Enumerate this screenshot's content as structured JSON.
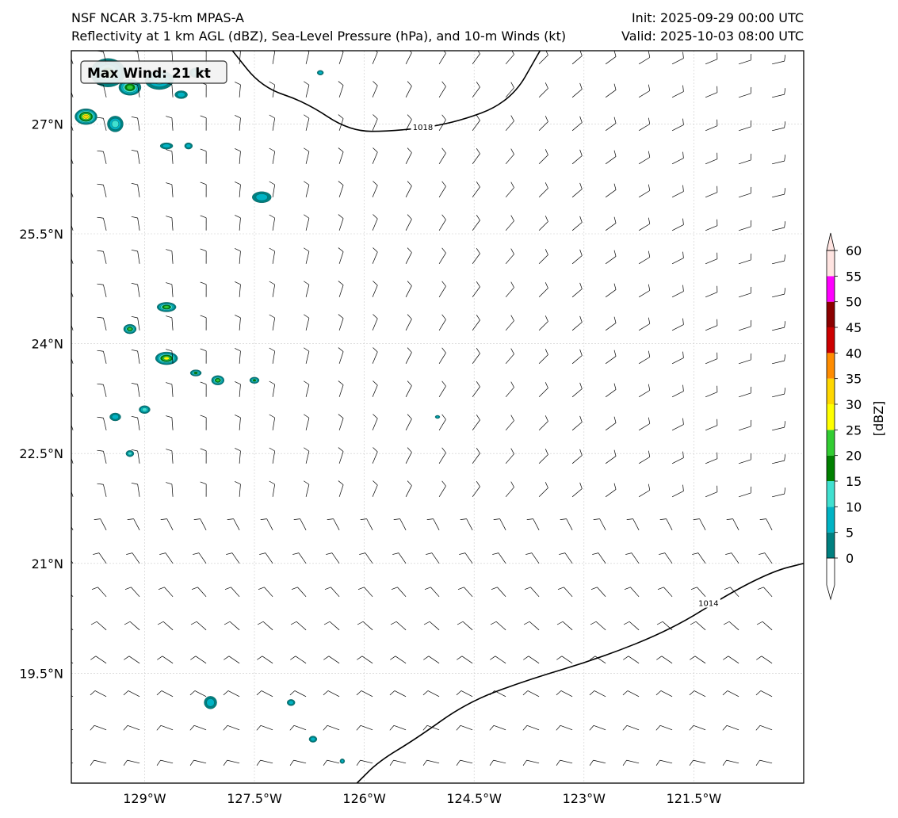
{
  "header": {
    "model": "NSF NCAR 3.75-km MPAS-A",
    "fields": "Reflectivity at 1 km AGL (dBZ), Sea-Level Pressure (hPa), and 10-m Winds (kt)",
    "init": "Init: 2025-09-29 00:00 UTC",
    "valid": "Valid: 2025-10-03 08:00 UTC"
  },
  "map": {
    "lon_range": [
      -130.0,
      -120.0
    ],
    "lat_range": [
      18.0,
      28.0
    ],
    "gridlines": true,
    "lon_ticks": [
      {
        "value": -129.0,
        "label": "129°W"
      },
      {
        "value": -127.5,
        "label": "127.5°W"
      },
      {
        "value": -126.0,
        "label": "126°W"
      },
      {
        "value": -124.5,
        "label": "124.5°W"
      },
      {
        "value": -123.0,
        "label": "123°W"
      },
      {
        "value": -121.5,
        "label": "121.5°W"
      }
    ],
    "lat_ticks": [
      {
        "value": 27.0,
        "label": "27°N"
      },
      {
        "value": 25.5,
        "label": "25.5°N"
      },
      {
        "value": 24.0,
        "label": "24°N"
      },
      {
        "value": 22.5,
        "label": "22.5°N"
      },
      {
        "value": 21.0,
        "label": "21°N"
      },
      {
        "value": 19.5,
        "label": "19.5°N"
      }
    ]
  },
  "max_wind": "Max Wind: 21 kt",
  "isobars": [
    {
      "label": "1018",
      "points": [
        [
          -127.8,
          28.0
        ],
        [
          -127.4,
          27.5
        ],
        [
          -126.8,
          27.3
        ],
        [
          -126.2,
          26.9
        ],
        [
          -125.6,
          26.9
        ],
        [
          -124.8,
          27.0
        ],
        [
          -124.0,
          27.3
        ],
        [
          -123.6,
          28.0
        ]
      ],
      "label_at": [
        -125.2,
        26.95
      ]
    },
    {
      "label": "1014",
      "points": [
        [
          -126.1,
          18.0
        ],
        [
          -125.8,
          18.3
        ],
        [
          -125.3,
          18.6
        ],
        [
          -124.6,
          19.1
        ],
        [
          -123.8,
          19.4
        ],
        [
          -122.8,
          19.7
        ],
        [
          -121.8,
          20.1
        ],
        [
          -121.0,
          20.6
        ],
        [
          -120.4,
          20.9
        ],
        [
          -120.0,
          21.0
        ]
      ],
      "label_at": [
        -121.3,
        20.45
      ]
    }
  ],
  "reflectivity_cells": [
    {
      "lon": -129.8,
      "lat": 27.1,
      "rx": 14,
      "ry": 10,
      "dbz": 32
    },
    {
      "lon": -129.5,
      "lat": 27.7,
      "rx": 22,
      "ry": 18,
      "dbz": 18
    },
    {
      "lon": -129.2,
      "lat": 27.5,
      "rx": 14,
      "ry": 10,
      "dbz": 22
    },
    {
      "lon": -128.8,
      "lat": 27.6,
      "rx": 18,
      "ry": 12,
      "dbz": 12
    },
    {
      "lon": -129.4,
      "lat": 27.0,
      "rx": 10,
      "ry": 10,
      "dbz": 10
    },
    {
      "lon": -128.5,
      "lat": 27.4,
      "rx": 8,
      "ry": 5,
      "dbz": 8
    },
    {
      "lon": -128.3,
      "lat": 27.7,
      "rx": 8,
      "ry": 6,
      "dbz": 10
    },
    {
      "lon": -128.7,
      "lat": 26.7,
      "rx": 8,
      "ry": 4,
      "dbz": 8
    },
    {
      "lon": -128.4,
      "lat": 26.7,
      "rx": 5,
      "ry": 4,
      "dbz": 6
    },
    {
      "lon": -127.4,
      "lat": 26.0,
      "rx": 12,
      "ry": 7,
      "dbz": 8
    },
    {
      "lon": -126.6,
      "lat": 27.7,
      "rx": 4,
      "ry": 3,
      "dbz": 6
    },
    {
      "lon": -128.7,
      "lat": 24.5,
      "rx": 12,
      "ry": 6,
      "dbz": 20
    },
    {
      "lon": -129.2,
      "lat": 24.2,
      "rx": 8,
      "ry": 6,
      "dbz": 22
    },
    {
      "lon": -128.7,
      "lat": 23.8,
      "rx": 14,
      "ry": 8,
      "dbz": 26
    },
    {
      "lon": -128.3,
      "lat": 23.6,
      "rx": 7,
      "ry": 4,
      "dbz": 18
    },
    {
      "lon": -128.0,
      "lat": 23.5,
      "rx": 8,
      "ry": 6,
      "dbz": 22
    },
    {
      "lon": -127.5,
      "lat": 23.5,
      "rx": 6,
      "ry": 4,
      "dbz": 18
    },
    {
      "lon": -129.0,
      "lat": 23.1,
      "rx": 7,
      "ry": 5,
      "dbz": 10
    },
    {
      "lon": -129.4,
      "lat": 23.0,
      "rx": 7,
      "ry": 5,
      "dbz": 8
    },
    {
      "lon": -129.2,
      "lat": 22.5,
      "rx": 5,
      "ry": 4,
      "dbz": 10
    },
    {
      "lon": -128.1,
      "lat": 19.1,
      "rx": 8,
      "ry": 8,
      "dbz": 6
    },
    {
      "lon": -127.0,
      "lat": 19.1,
      "rx": 5,
      "ry": 4,
      "dbz": 8
    },
    {
      "lon": -126.7,
      "lat": 18.6,
      "rx": 5,
      "ry": 4,
      "dbz": 6
    },
    {
      "lon": -126.3,
      "lat": 18.3,
      "rx": 3,
      "ry": 3,
      "dbz": 6
    },
    {
      "lon": -125.0,
      "lat": 23.0,
      "rx": 3,
      "ry": 2,
      "dbz": 6
    }
  ],
  "colorbar": {
    "label": "[dBZ]",
    "levels": [
      0,
      5,
      10,
      15,
      20,
      25,
      30,
      35,
      40,
      45,
      50,
      55,
      60
    ],
    "tick_labels": [
      "0",
      "5",
      "10",
      "15",
      "20",
      "25",
      "30",
      "35",
      "40",
      "45",
      "50",
      "55",
      "60"
    ],
    "colors": [
      "#008080",
      "#00b3c4",
      "#40e0d0",
      "#008000",
      "#32cd32",
      "#ffff00",
      "#ffd700",
      "#ff8c00",
      "#cc0000",
      "#8b0000",
      "#ff00ff",
      "#ffe4e1"
    ]
  }
}
